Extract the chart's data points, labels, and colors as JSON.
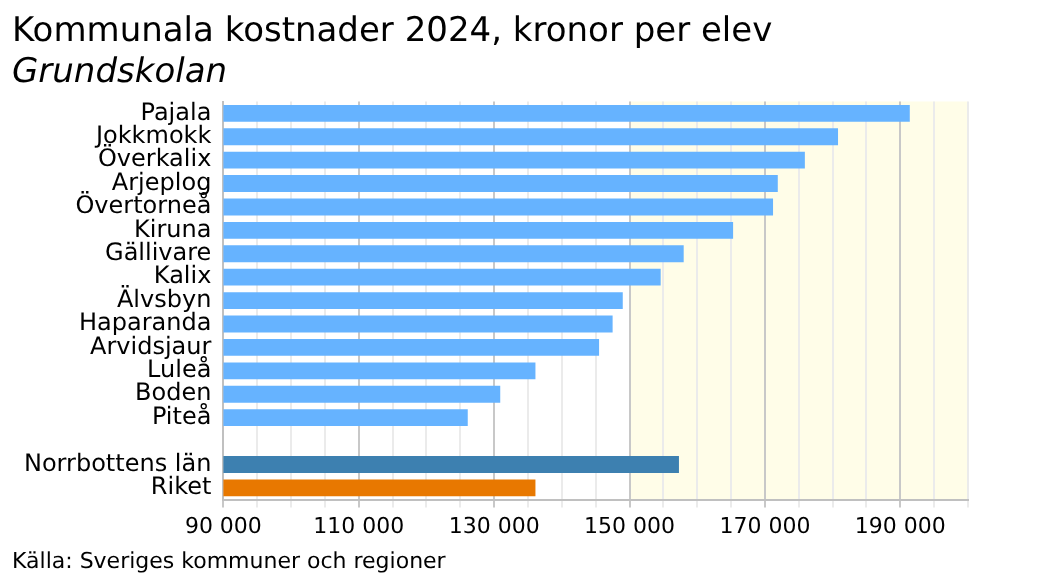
{
  "chart_data": {
    "type": "bar",
    "orientation": "horizontal",
    "title": "Kommunala kostnader 2024, kronor per elev",
    "subtitle": "Grundskolan",
    "categories": [
      "Pajala",
      "Jokkmokk",
      "Överkalix",
      "Arjeplog",
      "Övertorneå",
      "Kiruna",
      "Gällivare",
      "Kalix",
      "Älvsbyn",
      "Haparanda",
      "Arvidsjaur",
      "Luleå",
      "Boden",
      "Piteå",
      null,
      "Norrbottens län",
      "Riket"
    ],
    "values": [
      191400,
      180800,
      175900,
      171900,
      171200,
      165300,
      158000,
      154600,
      149000,
      147500,
      145500,
      136100,
      130900,
      126100,
      null,
      157300,
      136100
    ],
    "colors": [
      "#66b3ff",
      "#66b3ff",
      "#66b3ff",
      "#66b3ff",
      "#66b3ff",
      "#66b3ff",
      "#66b3ff",
      "#66b3ff",
      "#66b3ff",
      "#66b3ff",
      "#66b3ff",
      "#66b3ff",
      "#66b3ff",
      "#66b3ff",
      "#66b3ff",
      "#3d80b0",
      "#e87800"
    ],
    "xlim": [
      90000,
      200000
    ],
    "xticks": [
      {
        "value": 90000,
        "label": "90 000"
      },
      {
        "value": 95000,
        "label": null
      },
      {
        "value": 100000,
        "label": null
      },
      {
        "value": 105000,
        "label": null
      },
      {
        "value": 110000,
        "label": "110 000"
      },
      {
        "value": 115000,
        "label": null
      },
      {
        "value": 120000,
        "label": null
      },
      {
        "value": 125000,
        "label": null
      },
      {
        "value": 130000,
        "label": "130 000"
      },
      {
        "value": 135000,
        "label": null
      },
      {
        "value": 140000,
        "label": null
      },
      {
        "value": 145000,
        "label": null
      },
      {
        "value": 150000,
        "label": "150 000"
      },
      {
        "value": 155000,
        "label": null
      },
      {
        "value": 160000,
        "label": null
      },
      {
        "value": 165000,
        "label": null
      },
      {
        "value": 170000,
        "label": "170 000"
      },
      {
        "value": 175000,
        "label": null
      },
      {
        "value": 180000,
        "label": null
      },
      {
        "value": 185000,
        "label": null
      },
      {
        "value": 190000,
        "label": "190 000"
      },
      {
        "value": 195000,
        "label": null
      },
      {
        "value": 200000,
        "label": null
      }
    ],
    "bands": [
      {
        "axis": "x",
        "from": 150000,
        "to": 200000,
        "color": "#fffde8"
      }
    ],
    "grid": "x",
    "legend": false,
    "annotations": [
      "Källa: Sveriges kommuner och regioner"
    ]
  }
}
